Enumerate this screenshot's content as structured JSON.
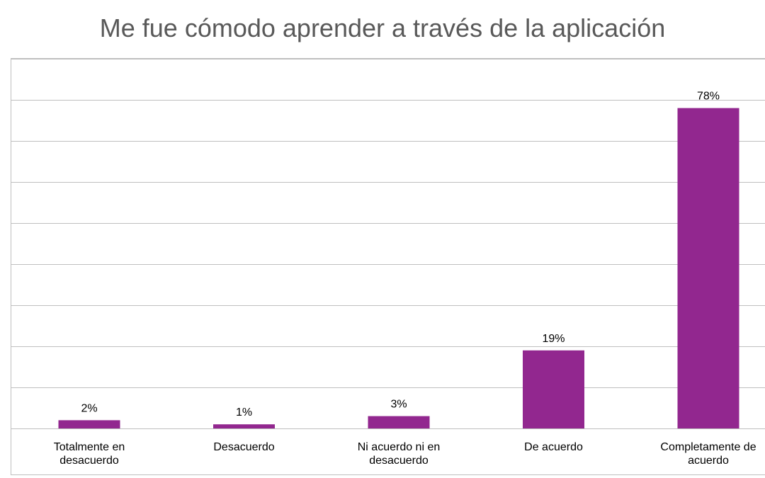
{
  "chart_data": {
    "type": "bar",
    "title": "Me fue cómodo aprender a través de la aplicación",
    "categories": [
      [
        "Totalmente en",
        "desacuerdo"
      ],
      [
        "Desacuerdo"
      ],
      [
        "Ni acuerdo ni en",
        "desacuerdo"
      ],
      [
        "De acuerdo"
      ],
      [
        "Completamente de",
        "acuerdo"
      ]
    ],
    "values": [
      2,
      1,
      3,
      19,
      78
    ],
    "value_labels": [
      "2%",
      "1%",
      "3%",
      "19%",
      "78%"
    ],
    "ylim": [
      0,
      90
    ],
    "grid": true,
    "bar_color": "#92278F"
  }
}
